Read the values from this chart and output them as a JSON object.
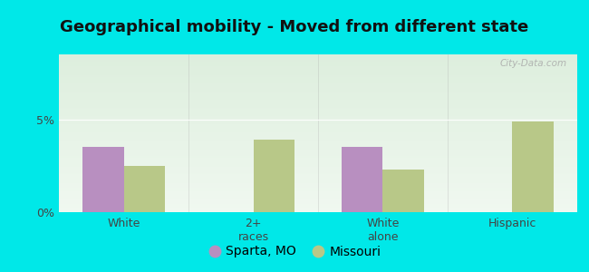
{
  "title": "Geographical mobility - Moved from different state",
  "categories": [
    "White",
    "2+\nraces",
    "White\nalone",
    "Hispanic"
  ],
  "sparta_values": [
    3.5,
    0.0,
    3.5,
    0.0
  ],
  "missouri_values": [
    2.5,
    3.9,
    2.3,
    4.9
  ],
  "sparta_color": "#b88fc0",
  "missouri_color": "#b8c888",
  "ylim": [
    0,
    8.5
  ],
  "yticks": [
    0,
    5
  ],
  "ytick_labels": [
    "0%",
    "5%"
  ],
  "background_color": "#00e8e8",
  "plot_bg_top_left": "#ddeedd",
  "plot_bg_bottom_right": "#f0f8f0",
  "legend_sparta": "Sparta, MO",
  "legend_missouri": "Missouri",
  "bar_width": 0.32,
  "title_fontsize": 13,
  "tick_fontsize": 9,
  "legend_fontsize": 10,
  "title_color": "#111111",
  "tick_color": "#444444",
  "watermark": "City-Data.com"
}
